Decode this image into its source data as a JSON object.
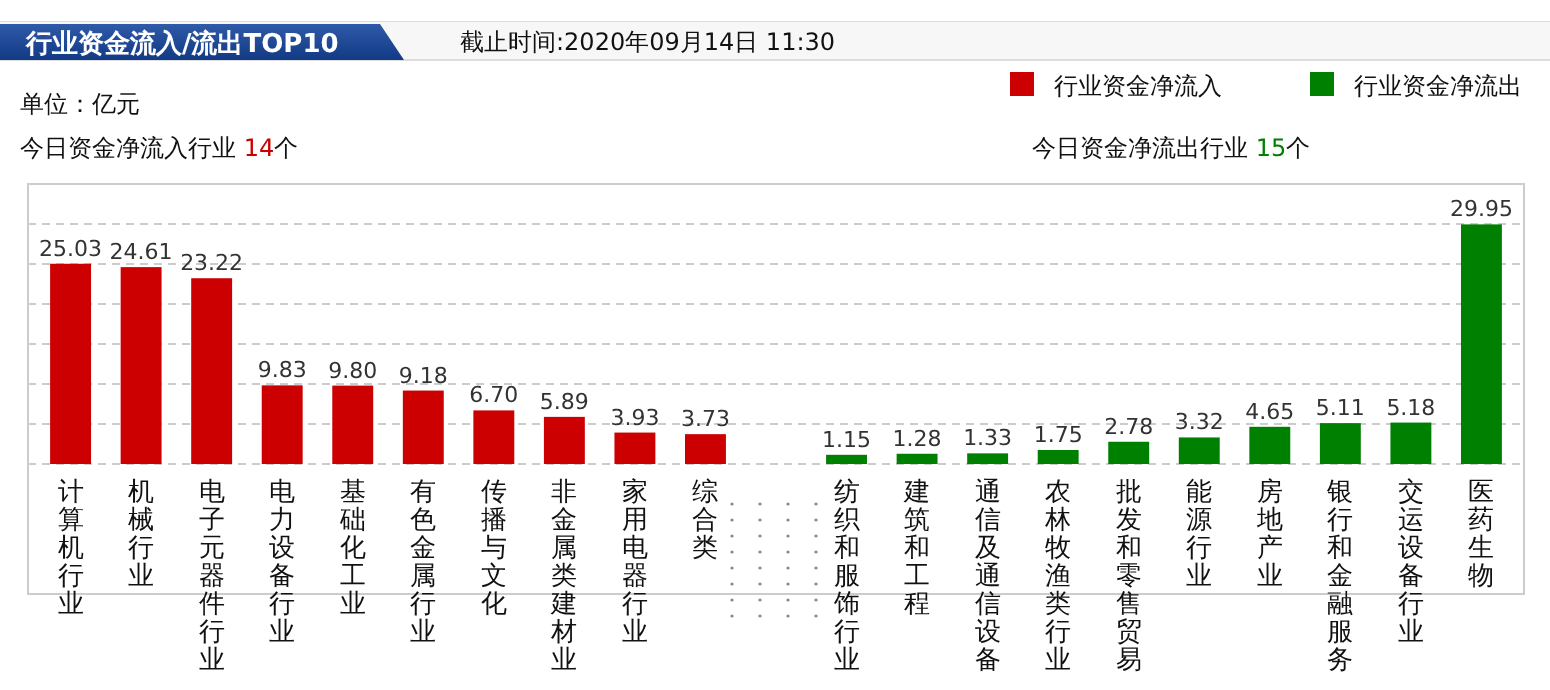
{
  "chart_data": {
    "type": "bar",
    "title": "行业资金流入/流出TOP10",
    "subtitle": "截止时间:2020年09月14日 11:30",
    "annotations": [
      "单位：亿元",
      "今日资金净流入行业 14个",
      "今日资金净流出行业 15个"
    ],
    "categories": [
      "计算机行业",
      "机械行业",
      "电子元器件行业",
      "电力设备行业",
      "基础化工业",
      "有色金属行业",
      "传播与文化",
      "非金属类建材业",
      "家用电器行业",
      "综合类",
      null,
      "纺织和服饰行业",
      "建筑和工程",
      "通信及通信设备",
      "农林牧渔类行业",
      "批发和零售贸易",
      "能源行业",
      "房地产业",
      "银行和金融服务",
      "交运设备行业",
      "医药生物"
    ],
    "series": [
      {
        "name": "行业资金净流入",
        "color": "#cc0000",
        "values": [
          25.03,
          24.61,
          23.22,
          9.83,
          9.8,
          9.18,
          6.7,
          5.89,
          3.93,
          3.73,
          null,
          null,
          null,
          null,
          null,
          null,
          null,
          null,
          null,
          null,
          null
        ],
        "value_labels": [
          "25.03",
          "24.61",
          "23.22",
          "9.83",
          "9.80",
          "9.18",
          "6.70",
          "5.89",
          "3.93",
          "3.73",
          null,
          null,
          null,
          null,
          null,
          null,
          null,
          null,
          null,
          null,
          null
        ]
      },
      {
        "name": "行业资金净流出",
        "color": "#008000",
        "values": [
          null,
          null,
          null,
          null,
          null,
          null,
          null,
          null,
          null,
          null,
          null,
          1.15,
          1.28,
          1.33,
          1.75,
          2.78,
          3.32,
          4.65,
          5.11,
          5.18,
          29.95
        ],
        "value_labels": [
          null,
          null,
          null,
          null,
          null,
          null,
          null,
          null,
          null,
          null,
          null,
          "1.15",
          "1.28",
          "1.33",
          "1.75",
          "2.78",
          "3.32",
          "4.65",
          "5.11",
          "5.18",
          "29.95"
        ]
      }
    ],
    "ylim": [
      0,
      35
    ],
    "yticks": [
      {
        "value": 0,
        "label": null
      },
      {
        "value": 5,
        "label": null
      },
      {
        "value": 10,
        "label": null
      },
      {
        "value": 15,
        "label": null
      },
      {
        "value": 20,
        "label": null
      },
      {
        "value": 25,
        "label": null
      },
      {
        "value": 30,
        "label": null
      }
    ],
    "grid": "y",
    "tick_labels": "x",
    "legend": "top right"
  }
}
